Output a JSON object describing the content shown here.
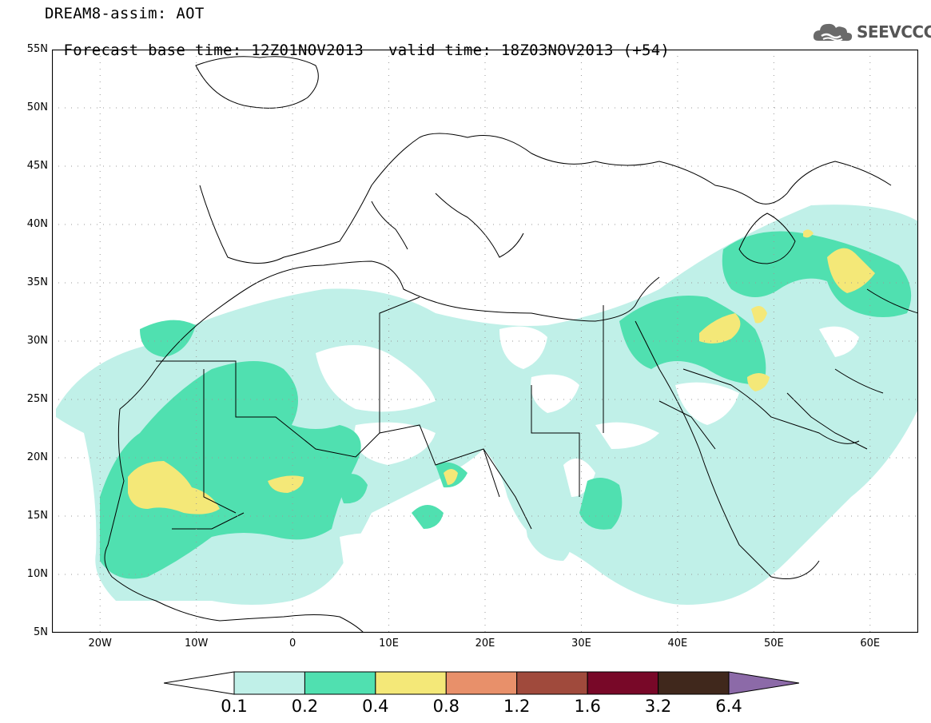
{
  "header": {
    "line1": "DREAM8-assim: AOT",
    "line2_base": "Forecast base time: 12Z01NOV2013",
    "line2_valid": "valid time: 18Z03NOV2013 (+54)"
  },
  "logo": {
    "text": "SEEVCCC",
    "icon": "cloud-icon"
  },
  "map": {
    "lat_labels": [
      "55N",
      "50N",
      "45N",
      "40N",
      "35N",
      "30N",
      "25N",
      "20N",
      "15N",
      "10N",
      "5N"
    ],
    "lon_labels": [
      "20W",
      "10W",
      "0",
      "10E",
      "20E",
      "30E",
      "40E",
      "50E",
      "60E"
    ],
    "lon_range": [
      -25,
      65
    ],
    "lat_range": [
      5,
      55
    ],
    "graticule": "dotted"
  },
  "colorbar": {
    "labels": [
      "0.1",
      "0.2",
      "0.4",
      "0.8",
      "1.2",
      "1.6",
      "3.2",
      "6.4"
    ],
    "colors": [
      "#ffffff",
      "#c0f0e8",
      "#50e0b0",
      "#f4e878",
      "#e8906a",
      "#a04a3c",
      "#780828",
      "#40281c",
      "#8c6aa8"
    ]
  }
}
